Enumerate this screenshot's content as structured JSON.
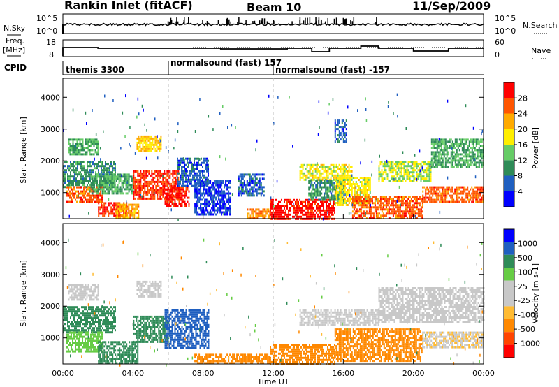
{
  "header": {
    "station": "Rankin Inlet (fitACF)",
    "beam": "Beam 10",
    "date": "11/Sep/2009"
  },
  "noise_panel": {
    "left_label": "N.Sky",
    "right_label": "N.Search",
    "left_ticks": [
      "10^5",
      "10^0"
    ],
    "right_ticks": [
      "10^5",
      "10^0"
    ]
  },
  "freq_panel": {
    "left_label_1": "Freq.",
    "left_label_2": "[MHz]",
    "right_label": "Nave",
    "left_ticks": [
      "18",
      "8"
    ],
    "right_ticks": [
      "60",
      "0"
    ]
  },
  "cpid_panel": {
    "label": "CPID",
    "segments": [
      {
        "start_hour": 0,
        "name": "themis 3300"
      },
      {
        "start_hour": 6,
        "name": "normalsound (fast) 157"
      },
      {
        "start_hour": 12,
        "name": "normalsound (fast) -157"
      }
    ]
  },
  "colors": {
    "power_scale": [
      "#0000ff",
      "#1f5fc0",
      "#2e8b57",
      "#66cc66",
      "#ffee00",
      "#ffaa00",
      "#ff5500",
      "#ff0000"
    ],
    "velocity_scale": [
      "#ff0000",
      "#ff4400",
      "#ff8800",
      "#ffbb33",
      "#c8c8c8",
      "#c8c8c8",
      "#66cc44",
      "#2e8b57",
      "#1f5fc0",
      "#0000ff"
    ]
  },
  "chart_data": [
    {
      "type": "heatmap",
      "name": "power",
      "xlabel": "",
      "ylabel": "Slant Range [km]",
      "xlim": [
        0,
        24
      ],
      "ylim": [
        180,
        4600
      ],
      "yticks": [
        "1000",
        "2000",
        "3000",
        "4000"
      ],
      "colorbar": {
        "label": "Power [dB]",
        "ticks": [
          "4",
          "8",
          "12",
          "16",
          "20",
          "24",
          "28"
        ],
        "range": [
          0,
          32
        ]
      },
      "regions": [
        {
          "t0": 0.3,
          "t1": 2.0,
          "r0": 2200,
          "r1": 2700,
          "level": 12
        },
        {
          "t0": 0.0,
          "t1": 3.0,
          "r0": 1200,
          "r1": 2000,
          "level": 10
        },
        {
          "t0": 0.2,
          "t1": 2.2,
          "r0": 700,
          "r1": 1200,
          "level": 26
        },
        {
          "t0": 1.5,
          "t1": 4.0,
          "r0": 1000,
          "r1": 1600,
          "level": 12
        },
        {
          "t0": 2.0,
          "t1": 3.6,
          "r0": 300,
          "r1": 700,
          "level": 28
        },
        {
          "t0": 3.0,
          "t1": 4.3,
          "r0": 200,
          "r1": 650,
          "level": 22
        },
        {
          "t0": 4.2,
          "t1": 5.6,
          "r0": 2300,
          "r1": 2800,
          "level": 20
        },
        {
          "t0": 4.0,
          "t1": 6.6,
          "r0": 800,
          "r1": 1700,
          "level": 28
        },
        {
          "t0": 5.8,
          "t1": 7.2,
          "r0": 600,
          "r1": 1200,
          "level": 30
        },
        {
          "t0": 6.5,
          "t1": 8.3,
          "r0": 1200,
          "r1": 2100,
          "level": 6
        },
        {
          "t0": 7.5,
          "t1": 9.5,
          "r0": 300,
          "r1": 1400,
          "level": 4
        },
        {
          "t0": 10.0,
          "t1": 11.5,
          "r0": 900,
          "r1": 1600,
          "level": 6
        },
        {
          "t0": 10.5,
          "t1": 11.8,
          "r0": 200,
          "r1": 500,
          "level": 24
        },
        {
          "t0": 11.8,
          "t1": 15.5,
          "r0": 200,
          "r1": 800,
          "level": 30
        },
        {
          "t0": 13.5,
          "t1": 16.5,
          "r0": 1400,
          "r1": 1900,
          "level": 18
        },
        {
          "t0": 14.0,
          "t1": 16.0,
          "r0": 800,
          "r1": 1400,
          "level": 10
        },
        {
          "t0": 15.5,
          "t1": 17.5,
          "r0": 600,
          "r1": 1500,
          "level": 18
        },
        {
          "t0": 16.5,
          "t1": 20.5,
          "r0": 200,
          "r1": 900,
          "level": 26
        },
        {
          "t0": 18.0,
          "t1": 21.0,
          "r0": 1400,
          "r1": 2000,
          "level": 16
        },
        {
          "t0": 20.5,
          "t1": 24.0,
          "r0": 700,
          "r1": 1200,
          "level": 26
        },
        {
          "t0": 21.0,
          "t1": 24.0,
          "r0": 1800,
          "r1": 2700,
          "level": 12
        },
        {
          "t0": 15.5,
          "t1": 16.2,
          "r0": 2600,
          "r1": 3300,
          "level": 6
        }
      ]
    },
    {
      "type": "heatmap",
      "name": "velocity",
      "xlabel": "Time UT",
      "ylabel": "Slant Range [km]",
      "xlim": [
        0,
        24
      ],
      "ylim": [
        180,
        4600
      ],
      "xticks": [
        "00:00",
        "04:00",
        "08:00",
        "12:00",
        "16:00",
        "20:00",
        "00:00"
      ],
      "yticks": [
        "1000",
        "2000",
        "3000",
        "4000"
      ],
      "colorbar": {
        "label": "Velocity [m s-1]",
        "ticks": [
          "1000",
          "500",
          "100",
          "25",
          "-25",
          "-100",
          "-500",
          "-1000"
        ]
      },
      "regions": [
        {
          "t0": 0.3,
          "t1": 2.0,
          "r0": 2200,
          "r1": 2700,
          "level": 0
        },
        {
          "t0": 0.0,
          "t1": 3.0,
          "r0": 1200,
          "r1": 2000,
          "level": 150
        },
        {
          "t0": 0.2,
          "t1": 2.2,
          "r0": 600,
          "r1": 1200,
          "level": 80
        },
        {
          "t0": 2.0,
          "t1": 4.3,
          "r0": 200,
          "r1": 900,
          "level": 120
        },
        {
          "t0": 4.2,
          "t1": 5.6,
          "r0": 2300,
          "r1": 2800,
          "level": 0
        },
        {
          "t0": 4.0,
          "t1": 6.0,
          "r0": 900,
          "r1": 1700,
          "level": 200
        },
        {
          "t0": 5.8,
          "t1": 8.3,
          "r0": 700,
          "r1": 1900,
          "level": 800
        },
        {
          "t0": 7.5,
          "t1": 11.8,
          "r0": 200,
          "r1": 500,
          "level": -150
        },
        {
          "t0": 11.8,
          "t1": 15.5,
          "r0": 200,
          "r1": 800,
          "level": -300
        },
        {
          "t0": 13.5,
          "t1": 18.0,
          "r0": 1400,
          "r1": 1900,
          "level": 0
        },
        {
          "t0": 15.5,
          "t1": 20.5,
          "r0": 300,
          "r1": 1300,
          "level": -350
        },
        {
          "t0": 18.0,
          "t1": 24.0,
          "r0": 1500,
          "r1": 2600,
          "level": 0
        },
        {
          "t0": 20.5,
          "t1": 24.0,
          "r0": 700,
          "r1": 1200,
          "level": -20
        }
      ]
    }
  ]
}
